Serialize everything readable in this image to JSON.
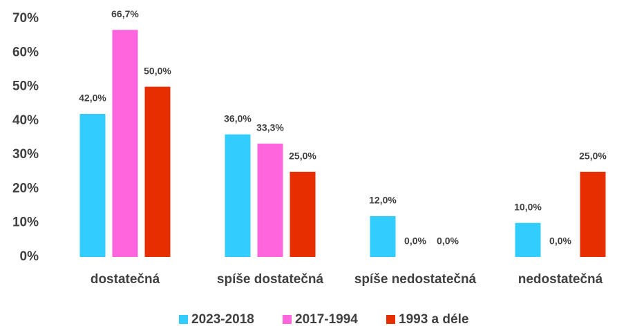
{
  "chart_data": {
    "type": "bar",
    "categories": [
      "dostatečná",
      "spíše dostatečná",
      "spíše nedostatečná",
      "nedostatečná"
    ],
    "series": [
      {
        "name": "2023-2018",
        "color": "#33ccff",
        "values": [
          42.0,
          36.0,
          12.0,
          10.0
        ],
        "value_labels": [
          "42,0%",
          "36,0%",
          "12,0%",
          "10,0%"
        ]
      },
      {
        "name": "2017-1994",
        "color": "#ff66dd",
        "values": [
          66.7,
          33.3,
          0.0,
          0.0
        ],
        "value_labels": [
          "66,7%",
          "33,3%",
          "0,0%",
          "0,0%"
        ]
      },
      {
        "name": "1993 a déle",
        "color": "#e62e00",
        "values": [
          50.0,
          25.0,
          0.0,
          25.0
        ],
        "value_labels": [
          "50,0%",
          "25,0%",
          "0,0%",
          "25,0%"
        ]
      }
    ],
    "ylim": [
      0,
      70
    ],
    "yticks": [
      {
        "value": 0,
        "label": "0%"
      },
      {
        "value": 10,
        "label": "10%"
      },
      {
        "value": 20,
        "label": "20%"
      },
      {
        "value": 30,
        "label": "30%"
      },
      {
        "value": 40,
        "label": "40%"
      },
      {
        "value": 50,
        "label": "50%"
      },
      {
        "value": 60,
        "label": "60%"
      },
      {
        "value": 70,
        "label": "70%"
      }
    ],
    "legend": "bottom"
  }
}
